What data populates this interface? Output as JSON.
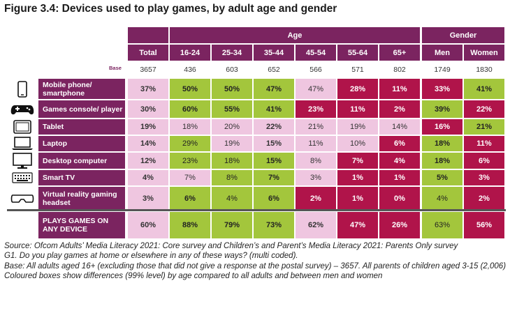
{
  "title": "Figure 3.4: Devices used to play games, by adult age and gender",
  "groups": {
    "age": "Age",
    "gender": "Gender"
  },
  "columns": [
    "Total",
    "16-24",
    "25-34",
    "35-44",
    "45-54",
    "55-64",
    "65+",
    "Men",
    "Women"
  ],
  "base_label": "Base",
  "base": [
    "3657",
    "436",
    "603",
    "652",
    "566",
    "571",
    "802",
    "1749",
    "1830"
  ],
  "rows": [
    {
      "label": "Mobile phone/ smartphone",
      "icon": "mobile-phone-icon",
      "values": [
        "37%",
        "50%",
        "50%",
        "47%",
        "47%",
        "28%",
        "11%",
        "33%",
        "41%"
      ]
    },
    {
      "label": "Games console/ player",
      "icon": "game-controller-icon",
      "values": [
        "30%",
        "60%",
        "55%",
        "41%",
        "23%",
        "11%",
        "2%",
        "39%",
        "22%"
      ]
    },
    {
      "label": "Tablet",
      "icon": "tablet-icon",
      "values": [
        "19%",
        "18%",
        "20%",
        "22%",
        "21%",
        "19%",
        "14%",
        "16%",
        "21%"
      ]
    },
    {
      "label": "Laptop",
      "icon": "laptop-icon",
      "values": [
        "14%",
        "29%",
        "19%",
        "15%",
        "11%",
        "10%",
        "6%",
        "18%",
        "11%"
      ]
    },
    {
      "label": "Desktop computer",
      "icon": "desktop-computer-icon",
      "values": [
        "12%",
        "23%",
        "18%",
        "15%",
        "8%",
        "7%",
        "4%",
        "18%",
        "6%"
      ]
    },
    {
      "label": "Smart TV",
      "icon": "smart-tv-icon",
      "values": [
        "4%",
        "7%",
        "8%",
        "7%",
        "3%",
        "1%",
        "1%",
        "5%",
        "3%"
      ]
    },
    {
      "label": "Virtual reality gaming headset",
      "icon": "vr-headset-icon",
      "values": [
        "3%",
        "6%",
        "4%",
        "6%",
        "2%",
        "1%",
        "0%",
        "4%",
        "2%"
      ]
    },
    {
      "label": "PLAYS GAMES ON ANY DEVICE",
      "icon": "",
      "values": [
        "60%",
        "88%",
        "79%",
        "73%",
        "62%",
        "47%",
        "26%",
        "63%",
        "56%"
      ]
    }
  ],
  "colors": {
    "header": "#7b2460",
    "pink": "#efc6e0",
    "green": "#a3c63c",
    "red": "#b0144a"
  },
  "cell_colors": [
    [
      "pink",
      "green",
      "green",
      "green",
      "pink",
      "red",
      "red",
      "red",
      "green"
    ],
    [
      "pink",
      "green",
      "green",
      "green",
      "red",
      "red",
      "red",
      "green",
      "red"
    ],
    [
      "pink",
      "pink",
      "pink",
      "pink",
      "pink",
      "pink",
      "pink",
      "red",
      "green"
    ],
    [
      "pink",
      "green",
      "pink",
      "pink",
      "pink",
      "pink",
      "red",
      "green",
      "red"
    ],
    [
      "pink",
      "green",
      "green",
      "green",
      "pink",
      "red",
      "red",
      "green",
      "red"
    ],
    [
      "pink",
      "pink",
      "green",
      "green",
      "pink",
      "red",
      "red",
      "green",
      "red"
    ],
    [
      "pink",
      "green",
      "green",
      "green",
      "red",
      "red",
      "red",
      "green",
      "red"
    ],
    [
      "pink",
      "green",
      "green",
      "green",
      "pink",
      "red",
      "red",
      "green",
      "red"
    ]
  ],
  "bold_cells": [
    [
      true,
      true,
      true,
      true,
      false,
      true,
      true,
      true,
      true
    ],
    [
      true,
      true,
      true,
      true,
      true,
      true,
      true,
      true,
      true
    ],
    [
      true,
      false,
      false,
      true,
      false,
      false,
      false,
      true,
      true
    ],
    [
      true,
      false,
      false,
      true,
      false,
      false,
      true,
      true,
      true
    ],
    [
      true,
      false,
      false,
      true,
      false,
      true,
      true,
      true,
      true
    ],
    [
      true,
      false,
      false,
      true,
      false,
      true,
      true,
      true,
      true
    ],
    [
      true,
      true,
      false,
      true,
      true,
      true,
      true,
      false,
      true
    ],
    [
      true,
      true,
      true,
      true,
      true,
      true,
      true,
      false,
      true
    ]
  ],
  "notes": [
    "Source: Ofcom Adults’ Media Literacy 2021: Core survey and Children’s and Parent’s Media Literacy 2021: Parents Only survey",
    "G1. Do you play games at home or elsewhere in any of these ways? (multi coded).",
    "Base: All adults aged 16+ (excluding those that did not give a response at the postal survey) – 3657. All parents of children aged 3-15 (2,006)",
    "Coloured boxes show differences (99% level) by age compared to all adults and between men and women"
  ]
}
